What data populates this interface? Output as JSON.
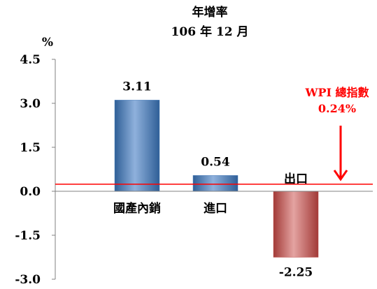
{
  "chart_data": {
    "type": "bar",
    "title": "年增率",
    "subtitle": "106 年 12 月",
    "ylabel": "%",
    "ylim": [
      -3.0,
      4.5
    ],
    "yticks": [
      "4.5",
      "3.0",
      "1.5",
      "0.0",
      "-1.5",
      "-3.0"
    ],
    "ytick_values": [
      4.5,
      3.0,
      1.5,
      0.0,
      -1.5,
      -3.0
    ],
    "grid": false,
    "categories": [
      "國產內銷",
      "進口",
      "出口"
    ],
    "values": [
      3.11,
      0.54,
      -2.25
    ],
    "value_labels": [
      "3.11",
      "0.54",
      "-2.25"
    ],
    "bar_colors": [
      "#4f81bd",
      "#4f81bd",
      "#c0504d"
    ],
    "reference_line": {
      "value": 0.24,
      "label": "WPI 總指數",
      "value_label": "0.24%",
      "color": "#ff0000"
    }
  }
}
